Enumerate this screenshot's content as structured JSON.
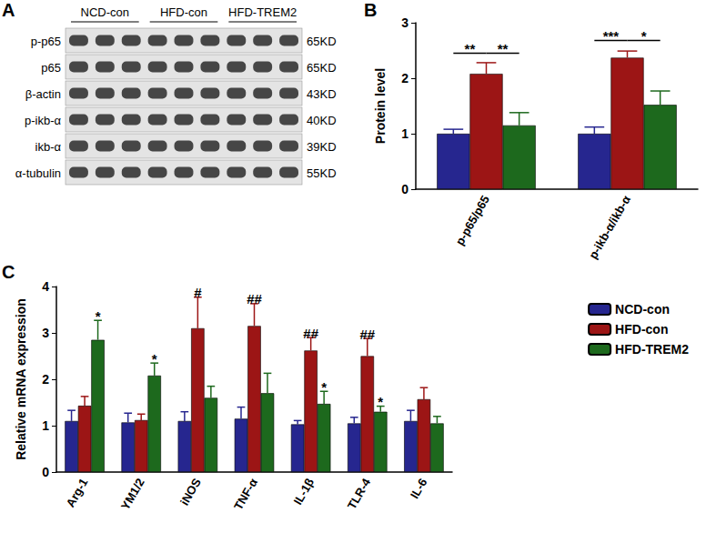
{
  "blot": {
    "panel_label": "A",
    "groups": [
      "NCD-con",
      "HFD-con",
      "HFD-TREM2"
    ],
    "lanes": 3,
    "rows": [
      {
        "label": "p-p65",
        "size": "65KD"
      },
      {
        "label": "p65",
        "size": "65KD"
      },
      {
        "label": "β-actin",
        "size": "43KD"
      },
      {
        "label": "p-ikb-α",
        "size": "40KD"
      },
      {
        "label": "ikb-α",
        "size": "39KD"
      },
      {
        "label": "α-tubulin",
        "size": "55KD"
      }
    ]
  },
  "chart_data": [
    {
      "panel_label": "B",
      "type": "bar",
      "y_label": "Protein level",
      "categories": [
        "p-p65/p65",
        "p-ikb-α/ikb-α"
      ],
      "series": [
        {
          "name": "NCD-con",
          "color": "#26268f",
          "values": [
            1.0,
            1.0
          ],
          "errors": [
            0.08,
            0.12
          ]
        },
        {
          "name": "HFD-con",
          "color": "#9c1515",
          "values": [
            2.08,
            2.37
          ],
          "errors": [
            0.2,
            0.12
          ]
        },
        {
          "name": "HFD-TREM2",
          "color": "#1d691d",
          "values": [
            1.15,
            1.52
          ],
          "errors": [
            0.23,
            0.25
          ]
        }
      ],
      "ylim": [
        0,
        3
      ],
      "yticks": [
        0,
        1,
        2,
        3
      ],
      "grid": false,
      "annotations": [
        {
          "text": "**",
          "category": "p-p65/p65",
          "from": "NCD-con",
          "to": "HFD-con",
          "y": 2.45
        },
        {
          "text": "**",
          "category": "p-p65/p65",
          "from": "HFD-con",
          "to": "HFD-TREM2",
          "y": 2.45
        },
        {
          "text": "***",
          "category": "p-ikb-α/ikb-α",
          "from": "NCD-con",
          "to": "HFD-con",
          "y": 2.68
        },
        {
          "text": "*",
          "category": "p-ikb-α/ikb-α",
          "from": "HFD-con",
          "to": "HFD-TREM2",
          "y": 2.68
        }
      ]
    },
    {
      "panel_label": "C",
      "type": "bar",
      "y_label": "Relative mRNA expression",
      "categories": [
        "Arg-1",
        "YM1/2",
        "iNOS",
        "TNF-α",
        "IL-1β",
        "TLR-4",
        "IL-6"
      ],
      "series": [
        {
          "name": "NCD-con",
          "color": "#26268f",
          "values": [
            1.1,
            1.07,
            1.1,
            1.15,
            1.03,
            1.05,
            1.1
          ],
          "errors": [
            0.23,
            0.2,
            0.2,
            0.25,
            0.08,
            0.13,
            0.23
          ]
        },
        {
          "name": "HFD-con",
          "color": "#9c1515",
          "values": [
            1.43,
            1.12,
            3.1,
            3.15,
            2.62,
            2.5,
            1.57
          ],
          "errors": [
            0.2,
            0.13,
            0.67,
            0.48,
            0.28,
            0.38,
            0.25
          ]
        },
        {
          "name": "HFD-TREM2",
          "color": "#1d691d",
          "values": [
            2.85,
            2.08,
            1.6,
            1.7,
            1.47,
            1.3,
            1.05
          ],
          "errors": [
            0.42,
            0.27,
            0.25,
            0.43,
            0.27,
            0.12,
            0.15
          ]
        }
      ],
      "ylim": [
        0,
        4
      ],
      "yticks": [
        0,
        1,
        2,
        3,
        4
      ],
      "grid": false,
      "legend": "right",
      "annotations": [
        {
          "text": "*",
          "category": "Arg-1",
          "series": "HFD-TREM2",
          "y": 3.3
        },
        {
          "text": "*",
          "category": "YM1/2",
          "series": "HFD-TREM2",
          "y": 2.38
        },
        {
          "text": "#",
          "category": "iNOS",
          "series": "HFD-con",
          "y": 3.8
        },
        {
          "text": "##",
          "category": "TNF-α",
          "series": "HFD-con",
          "y": 3.66
        },
        {
          "text": "##",
          "category": "IL-1β",
          "series": "HFD-con",
          "y": 2.93
        },
        {
          "text": "*",
          "category": "IL-1β",
          "series": "HFD-TREM2",
          "y": 1.77
        },
        {
          "text": "##",
          "category": "TLR-4",
          "series": "HFD-con",
          "y": 2.91
        },
        {
          "text": "*",
          "category": "TLR-4",
          "series": "HFD-TREM2",
          "y": 1.45
        }
      ]
    }
  ]
}
